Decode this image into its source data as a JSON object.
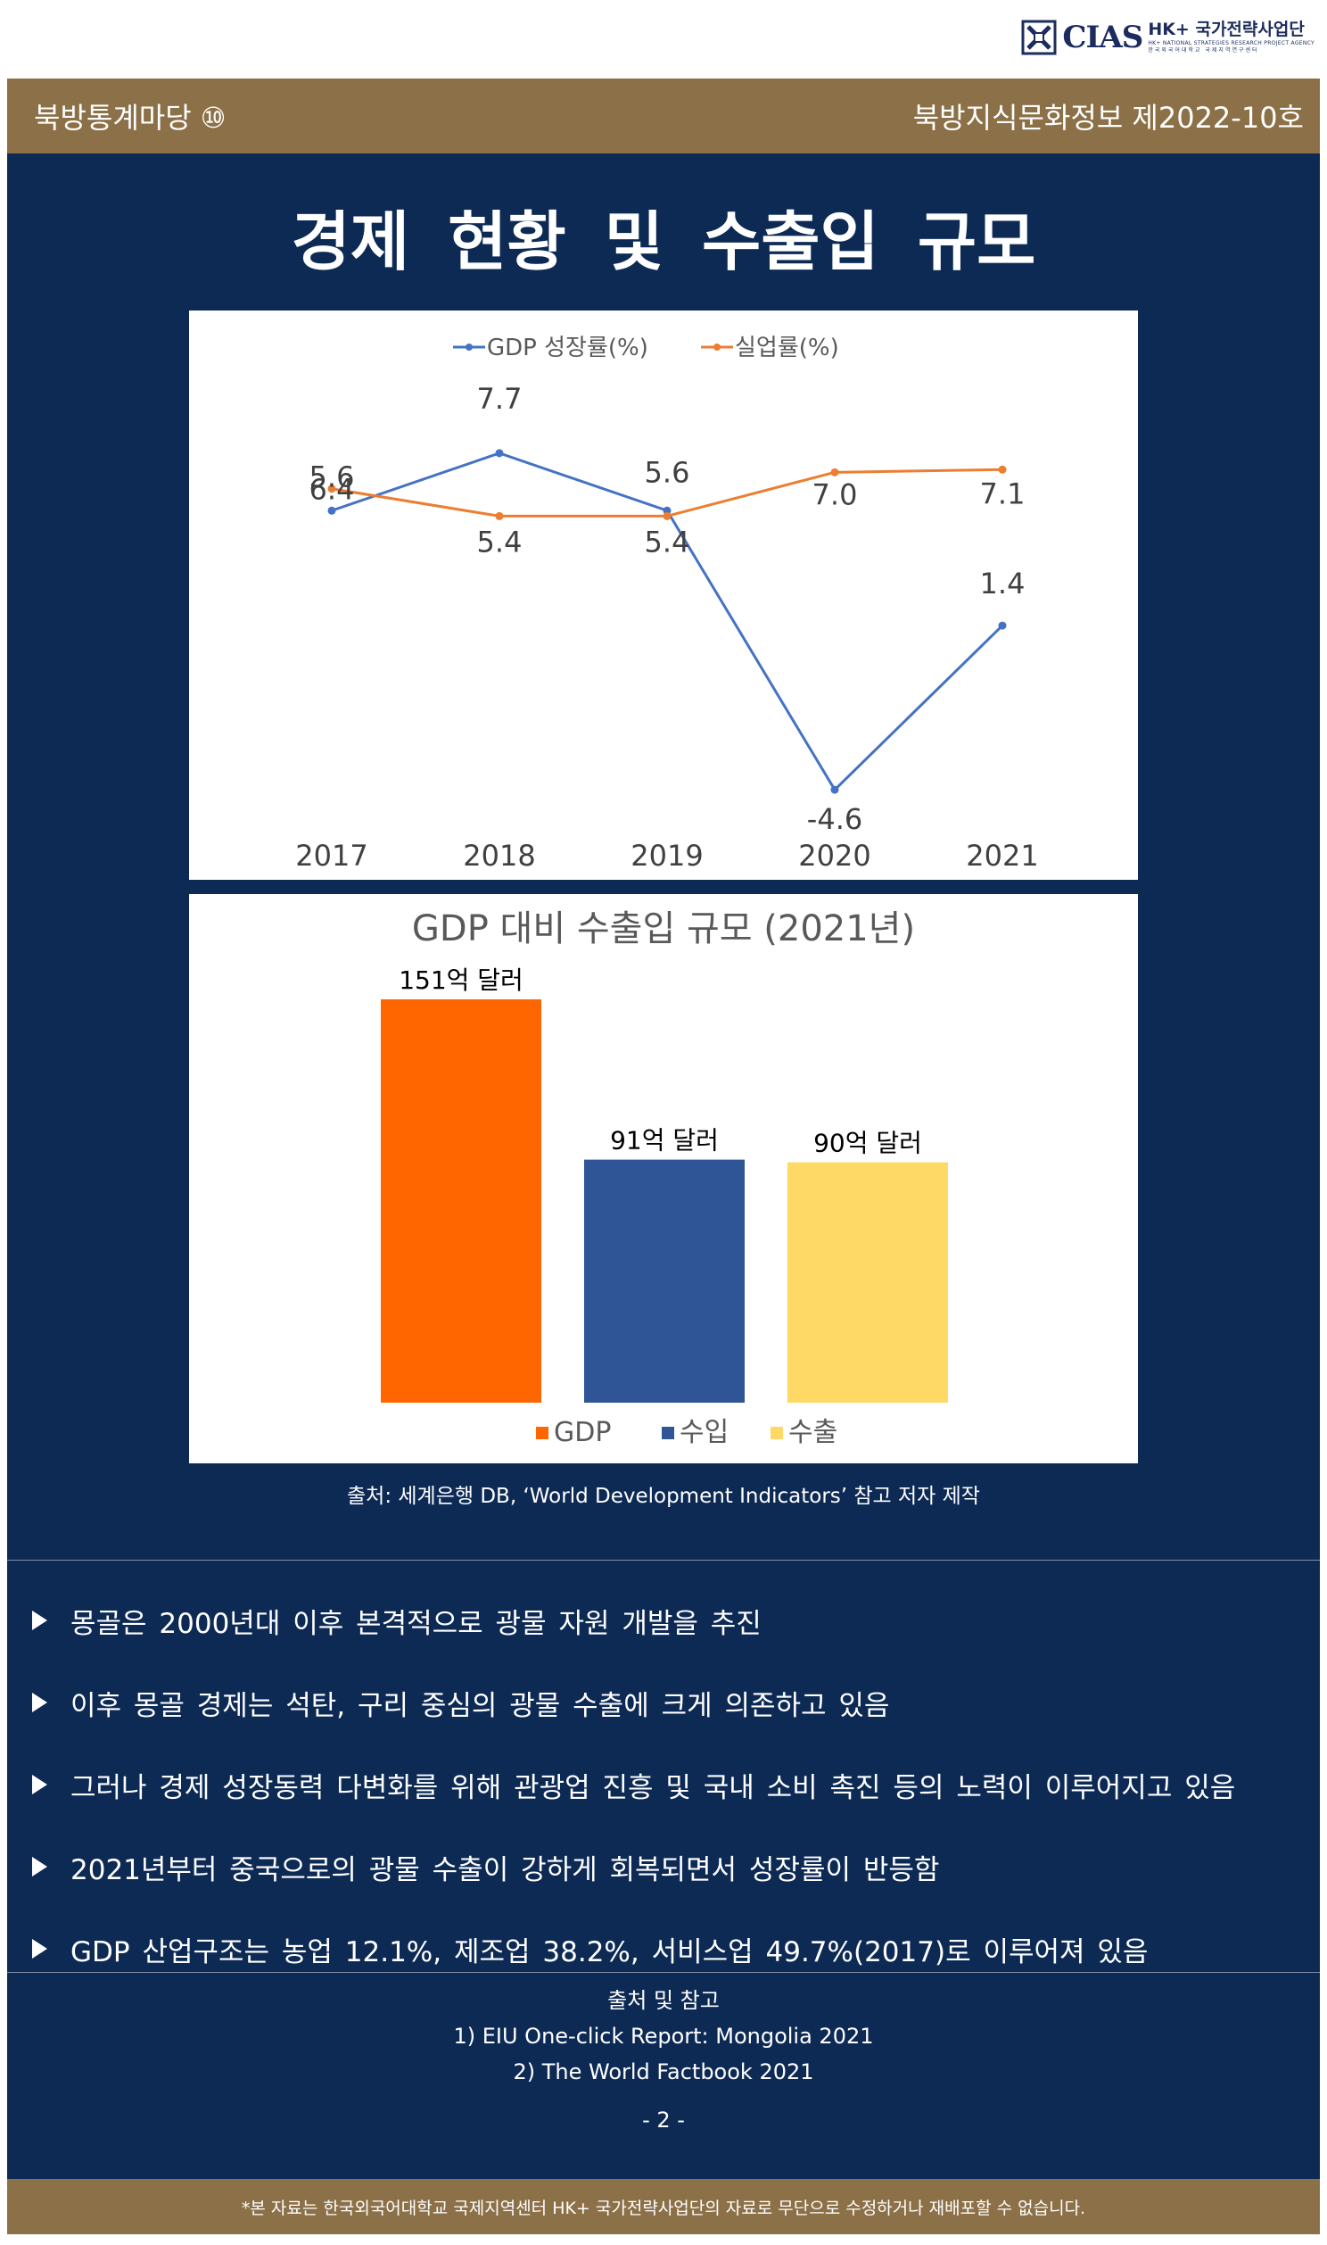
{
  "header": {
    "logo_name": "CIAS",
    "logo_hk": "HK+ 국가전략사업단",
    "logo_sub": "HK+ NATIONAL STRATEGIES RESEARCH PROJECT AGENCY",
    "logo_sub2": "한국외국어대학교 국제지역연구센터",
    "series_label": "북방통계마당 ⑩",
    "issue_label": "북방지식문화정보 제2022-10호"
  },
  "title": "경제 현황 및 수출입 규모",
  "chart_data": [
    {
      "type": "line",
      "title": "",
      "x": [
        "2017",
        "2018",
        "2019",
        "2020",
        "2021"
      ],
      "series": [
        {
          "name": "GDP 성장률(%)",
          "values": [
            5.6,
            7.7,
            5.6,
            -4.6,
            1.4
          ],
          "labels": [
            "5.6",
            "7.7",
            "5.6",
            "-4.6",
            "1.4"
          ],
          "color": "#4472c4"
        },
        {
          "name": "실업률(%)",
          "values": [
            6.4,
            5.4,
            5.4,
            7.0,
            7.1
          ],
          "labels": [
            "6.4",
            "5.4",
            "5.4",
            "7.0",
            "7.1"
          ],
          "color": "#ed7d31"
        }
      ],
      "ylim": [
        -6,
        9
      ],
      "legend": "top",
      "grid": false
    },
    {
      "type": "bar",
      "title": "GDP 대비 수출입 규모 (2021년)",
      "categories": [
        "GDP",
        "수입",
        "수출"
      ],
      "values": [
        151,
        91,
        90
      ],
      "labels": [
        "151억 달러",
        "91억 달러",
        "90억 달러"
      ],
      "colors": [
        "#ff6600",
        "#2f5597",
        "#ffd966"
      ],
      "ylim": [
        0,
        160
      ],
      "legend": "bottom",
      "grid": false
    }
  ],
  "chart_source": "출처: 세계은행 DB, ‘World Development Indicators’ 참고 저자 제작",
  "bullets": [
    "몽골은 2000년대 이후 본격적으로 광물 자원 개발을 추진",
    "이후 몽골 경제는 석탄, 구리 중심의 광물 수출에 크게 의존하고 있음",
    "그러나 경제 성장동력 다변화를 위해 관광업 진흥 및 국내 소비 촉진 등의 노력이 이루어지고 있음",
    "2021년부터 중국으로의 광물 수출이 강하게 회복되면서 성장률이 반등함",
    "GDP 산업구조는 농업 12.1%, 제조업 38.2%, 서비스업 49.7%(2017)로 이루어져 있음"
  ],
  "references": {
    "heading": "출처 및 참고",
    "items": [
      "1) EIU One-click Report: Mongolia 2021",
      "2) The World Factbook 2021"
    ]
  },
  "page_number": "- 2 -",
  "footer_note": "*본 자료는 한국외국어대학교 국제지역센터 HK+ 국가전략사업단의 자료로 무단으로 수정하거나 재배포할 수 없습니다."
}
